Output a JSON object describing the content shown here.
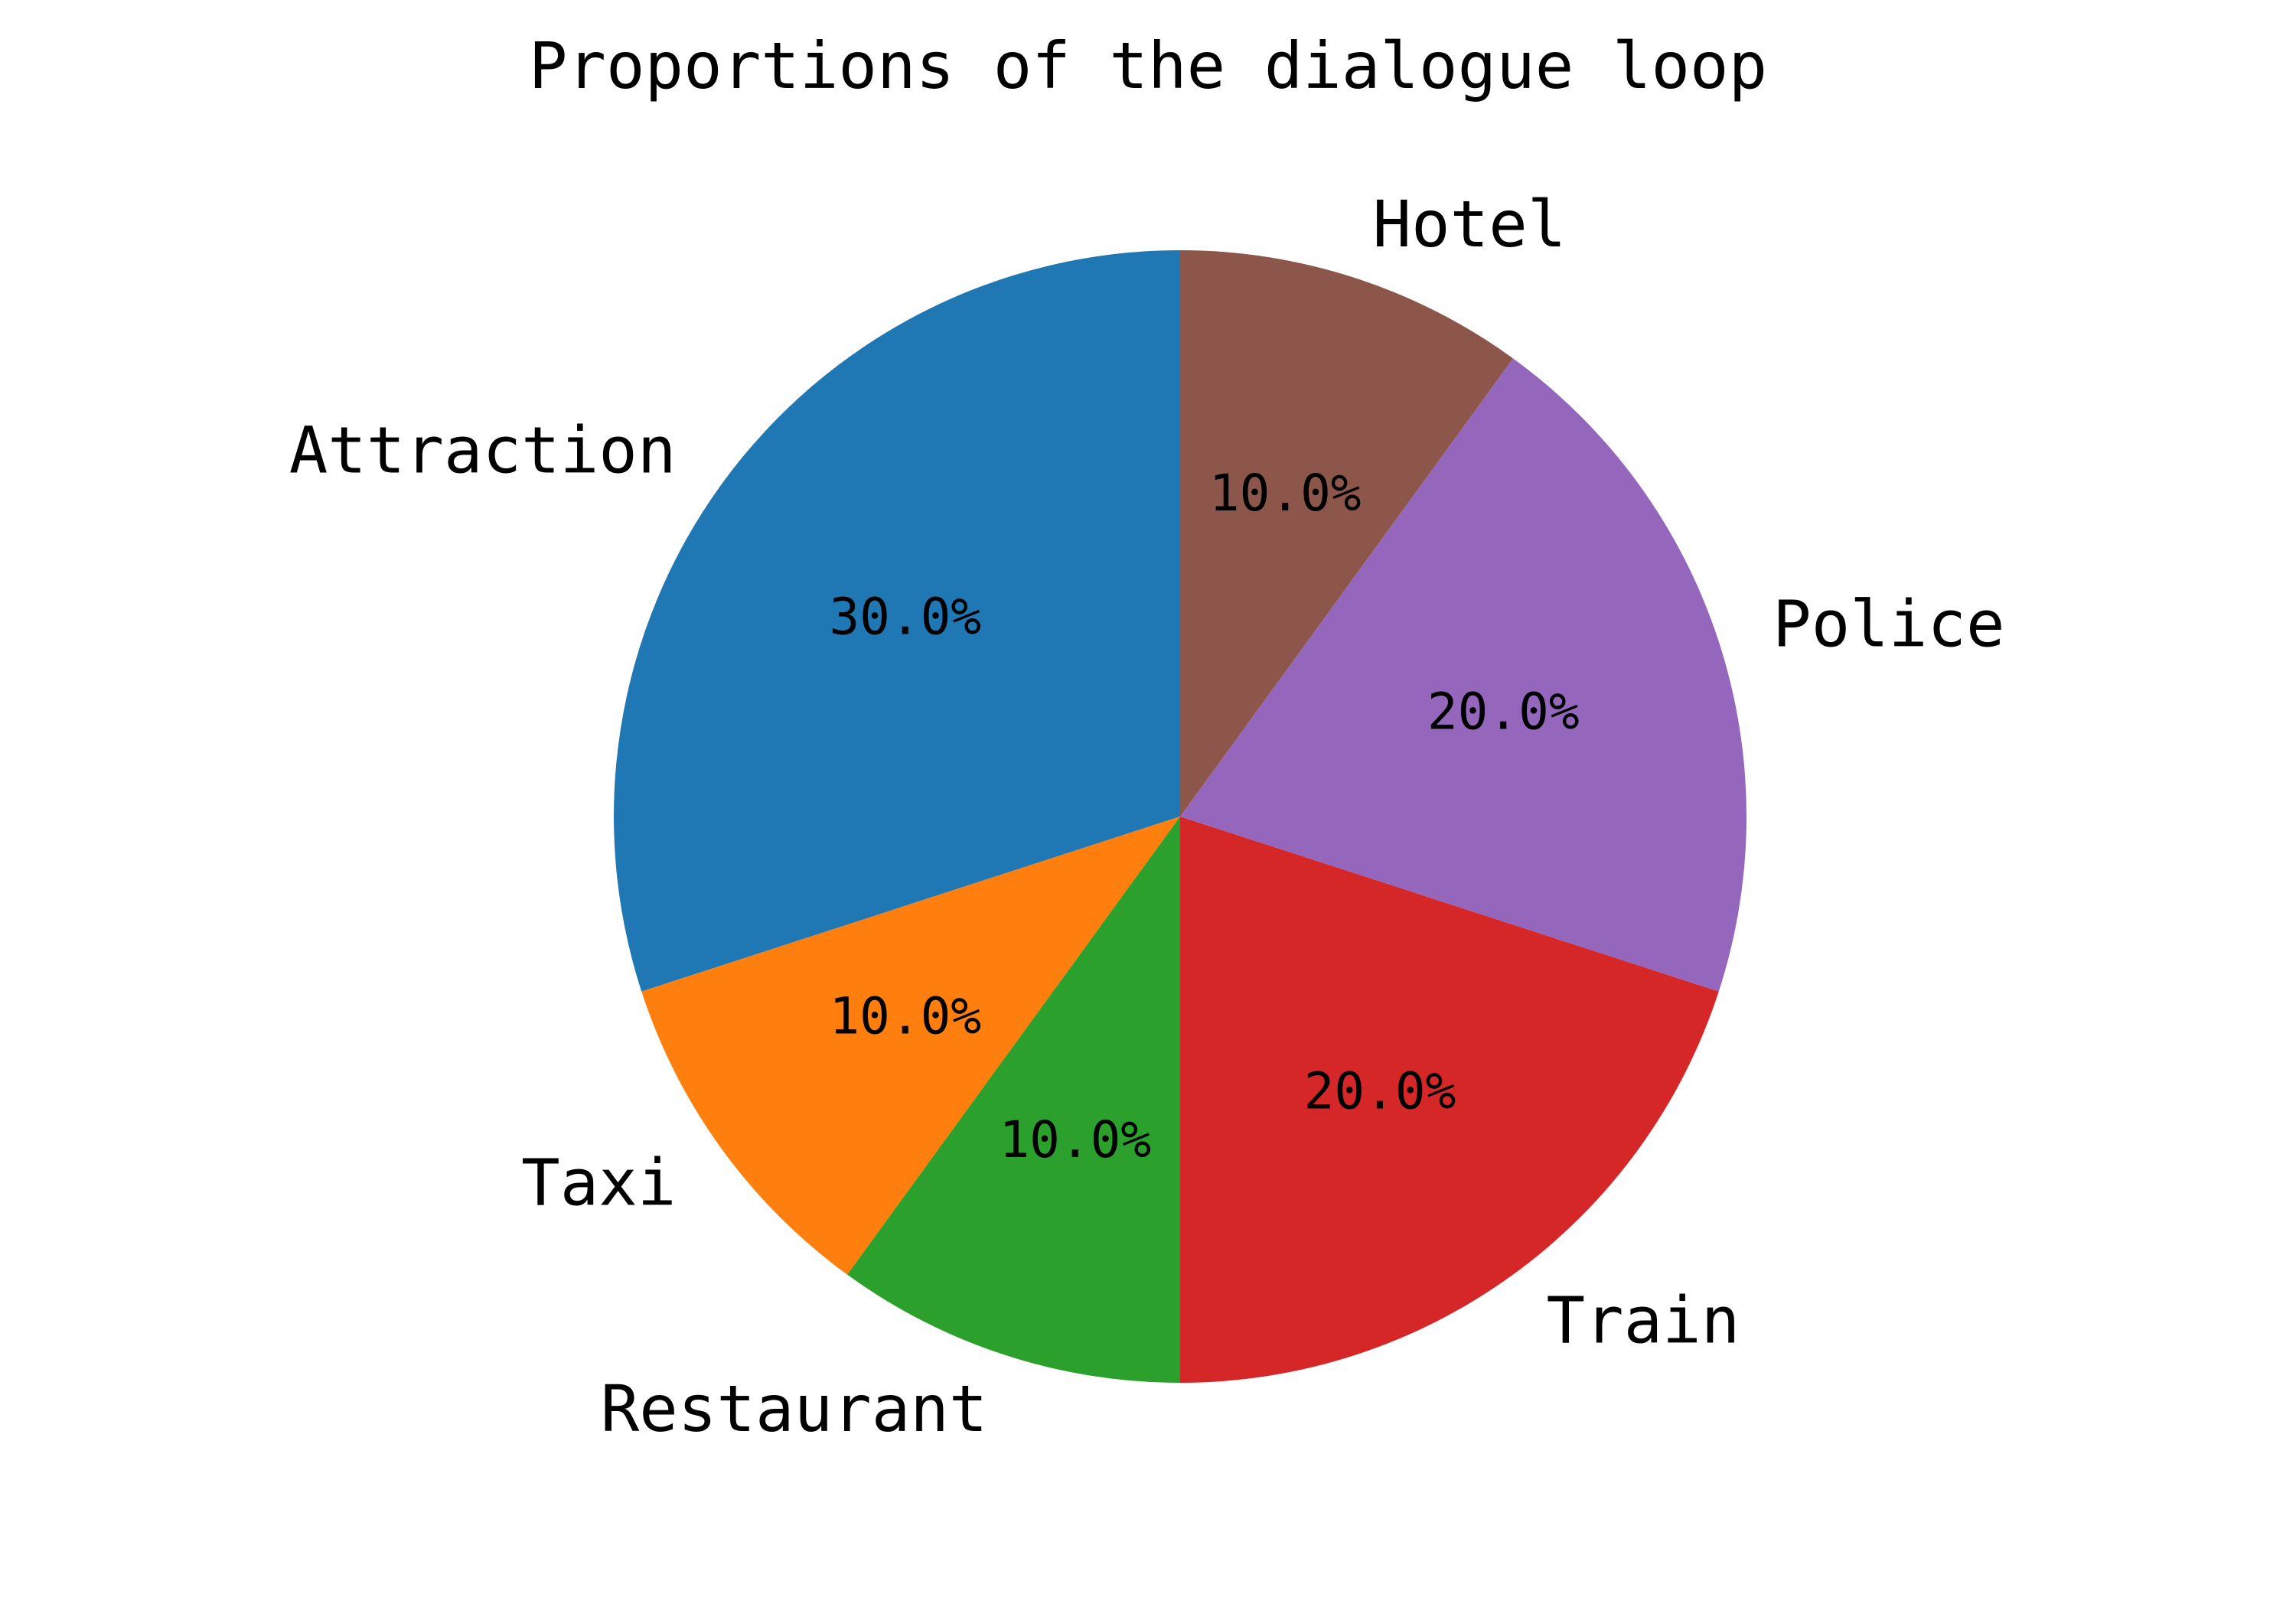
{
  "chart_data": {
    "type": "pie",
    "title": "Proportions of the dialogue loop",
    "start_angle_deg": 90,
    "direction": "counterclockwise",
    "slices": [
      {
        "label": "Attraction",
        "value": 30.0,
        "pct_label": "30.0%",
        "color": "#1f77b4"
      },
      {
        "label": "Taxi",
        "value": 10.0,
        "pct_label": "10.0%",
        "color": "#ff7f0e"
      },
      {
        "label": "Restaurant",
        "value": 10.0,
        "pct_label": "10.0%",
        "color": "#2ca02c"
      },
      {
        "label": "Train",
        "value": 20.0,
        "pct_label": "20.0%",
        "color": "#d62728"
      },
      {
        "label": "Police",
        "value": 20.0,
        "pct_label": "20.0%",
        "color": "#9467bd"
      },
      {
        "label": "Hotel",
        "value": 10.0,
        "pct_label": "10.0%",
        "color": "#8c564b"
      }
    ]
  }
}
